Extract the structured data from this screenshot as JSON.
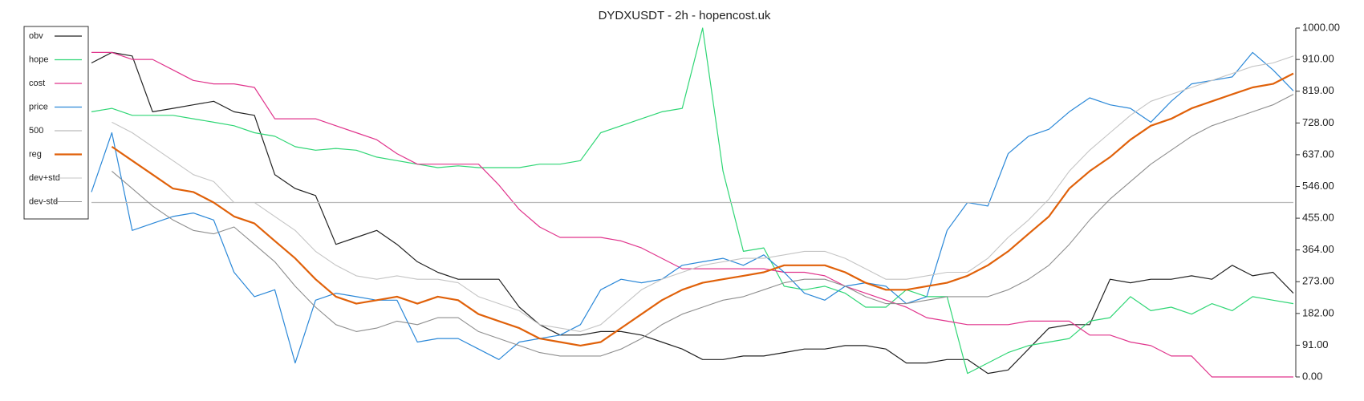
{
  "chart_data": {
    "type": "line",
    "title": "DYDXUSDT - 2h - hopencost.uk",
    "ylim": [
      0,
      1000
    ],
    "yticks": [
      {
        "value": 0,
        "label": "0.00"
      },
      {
        "value": 91,
        "label": "91.00"
      },
      {
        "value": 182,
        "label": "182.00"
      },
      {
        "value": 273,
        "label": "273.00"
      },
      {
        "value": 364,
        "label": "364.00"
      },
      {
        "value": 455,
        "label": "455.00"
      },
      {
        "value": 546,
        "label": "546.00"
      },
      {
        "value": 637,
        "label": "637.00"
      },
      {
        "value": 728,
        "label": "728.00"
      },
      {
        "value": 819,
        "label": "819.00"
      },
      {
        "value": 910,
        "label": "910.00"
      },
      {
        "value": 1000,
        "label": "1000.00"
      }
    ],
    "y_axis_side": "right",
    "grid": false,
    "legend": "upper left",
    "series": [
      {
        "name": "obv",
        "color": "#222222",
        "line_width": 1.2,
        "values": [
          900,
          930,
          920,
          760,
          770,
          780,
          790,
          760,
          750,
          580,
          540,
          520,
          380,
          400,
          420,
          380,
          330,
          300,
          280,
          280,
          280,
          200,
          150,
          120,
          120,
          130,
          130,
          120,
          100,
          80,
          50,
          50,
          60,
          60,
          70,
          80,
          80,
          90,
          90,
          80,
          40,
          40,
          50,
          50,
          10,
          20,
          80,
          140,
          150,
          150,
          280,
          270,
          280,
          280,
          290,
          280,
          320,
          290,
          300,
          240
        ]
      },
      {
        "name": "hope",
        "color": "#2fd675",
        "line_width": 1.2,
        "values": [
          760,
          770,
          750,
          750,
          750,
          740,
          730,
          720,
          700,
          690,
          660,
          650,
          655,
          650,
          630,
          620,
          610,
          600,
          605,
          600,
          600,
          600,
          610,
          610,
          620,
          700,
          720,
          740,
          760,
          770,
          1000,
          590,
          360,
          370,
          260,
          250,
          260,
          240,
          200,
          200,
          250,
          230,
          230,
          10,
          40,
          70,
          90,
          100,
          110,
          160,
          170,
          230,
          190,
          200,
          180,
          210,
          190,
          230,
          220,
          210
        ]
      },
      {
        "name": "cost",
        "color": "#e0348c",
        "line_width": 1.2,
        "values": [
          930,
          930,
          910,
          910,
          880,
          850,
          840,
          840,
          830,
          740,
          740,
          740,
          720,
          700,
          680,
          640,
          610,
          610,
          610,
          610,
          550,
          480,
          430,
          400,
          400,
          400,
          390,
          370,
          340,
          310,
          310,
          310,
          310,
          310,
          300,
          300,
          290,
          260,
          240,
          220,
          200,
          170,
          160,
          150,
          150,
          150,
          160,
          160,
          160,
          120,
          120,
          100,
          90,
          60,
          60,
          0,
          0,
          0,
          0,
          0
        ]
      },
      {
        "name": "price",
        "color": "#2b88d8",
        "line_width": 1.2,
        "values": [
          530,
          700,
          420,
          440,
          460,
          470,
          450,
          300,
          230,
          250,
          40,
          220,
          240,
          230,
          220,
          220,
          100,
          110,
          110,
          80,
          50,
          100,
          110,
          120,
          150,
          250,
          280,
          270,
          280,
          320,
          330,
          340,
          320,
          350,
          300,
          240,
          220,
          260,
          270,
          260,
          210,
          230,
          420,
          500,
          490,
          640,
          690,
          710,
          760,
          800,
          780,
          770,
          730,
          790,
          840,
          850,
          860,
          930,
          880,
          820
        ]
      },
      {
        "name": "500",
        "color": "#bbbbbb",
        "line_width": 1.2,
        "values": [
          500,
          500,
          500,
          500,
          500,
          500,
          500,
          500,
          500,
          500,
          500,
          500,
          500,
          500,
          500,
          500,
          500,
          500,
          500,
          500,
          500,
          500,
          500,
          500,
          500,
          500,
          500,
          500,
          500,
          500,
          500,
          500,
          500,
          500,
          500,
          500,
          500,
          500,
          500,
          500,
          500,
          500,
          500,
          500,
          500,
          500,
          500,
          500,
          500,
          500,
          500,
          500,
          500,
          500,
          500,
          500,
          500,
          500,
          500,
          500
        ]
      },
      {
        "name": "reg",
        "color": "#e0610a",
        "line_width": 2.2,
        "values": [
          null,
          660,
          620,
          580,
          540,
          530,
          500,
          460,
          440,
          390,
          340,
          280,
          230,
          210,
          220,
          230,
          210,
          230,
          220,
          180,
          160,
          140,
          110,
          100,
          90,
          100,
          140,
          180,
          220,
          250,
          270,
          280,
          290,
          300,
          320,
          320,
          320,
          300,
          270,
          250,
          250,
          260,
          270,
          290,
          320,
          360,
          410,
          460,
          540,
          590,
          630,
          680,
          720,
          740,
          770,
          790,
          810,
          830,
          840,
          870
        ]
      },
      {
        "name": "dev+std",
        "color": "#c4c4c4",
        "line_width": 1.1,
        "values": [
          null,
          730,
          700,
          660,
          620,
          580,
          560,
          500,
          500,
          460,
          420,
          360,
          320,
          290,
          280,
          290,
          280,
          280,
          270,
          230,
          210,
          190,
          150,
          140,
          130,
          150,
          200,
          250,
          280,
          300,
          320,
          330,
          340,
          340,
          350,
          360,
          360,
          340,
          310,
          280,
          280,
          290,
          300,
          300,
          340,
          400,
          450,
          510,
          590,
          650,
          700,
          750,
          790,
          810,
          830,
          850,
          870,
          890,
          900,
          920
        ]
      },
      {
        "name": "dev-std",
        "color": "#8e8e8e",
        "line_width": 1.1,
        "values": [
          null,
          590,
          540,
          490,
          450,
          420,
          410,
          430,
          380,
          330,
          260,
          200,
          150,
          130,
          140,
          160,
          150,
          170,
          170,
          130,
          110,
          90,
          70,
          60,
          60,
          60,
          80,
          110,
          150,
          180,
          200,
          220,
          230,
          250,
          270,
          280,
          280,
          260,
          230,
          210,
          210,
          220,
          230,
          230,
          230,
          250,
          280,
          320,
          380,
          450,
          510,
          560,
          610,
          650,
          690,
          720,
          740,
          760,
          780,
          810
        ]
      }
    ]
  }
}
